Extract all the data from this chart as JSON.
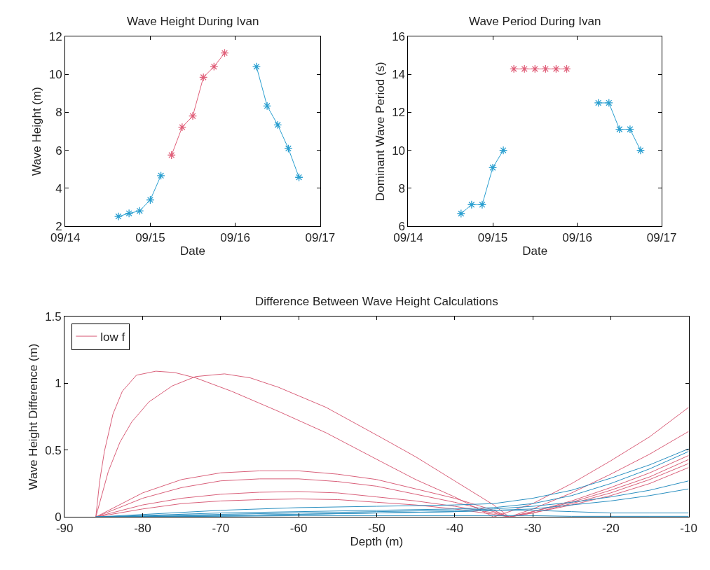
{
  "chart_data": [
    {
      "type": "line",
      "title": "Wave Height During Ivan",
      "xlabel": "Date",
      "ylabel": "Wave Height (m)",
      "marker": "cross",
      "x": [
        "--09-14T15:00",
        "--09-14T18:00",
        "--09-14T21:00",
        "--09-15T00:00",
        "--09-15T03:00",
        "--09-15T06:00",
        "--09-15T09:00",
        "--09-15T12:00",
        "--09-15T15:00",
        "--09-15T18:00",
        "--09-15T21:00",
        "--09-16T06:00",
        "--09-16T09:00",
        "--09-16T12:00",
        "--09-16T15:00",
        "--09-16T18:00"
      ],
      "xlim": [
        "--09-14",
        "--09-17"
      ],
      "xticks": [
        {
          "value": "--09-14",
          "label": "09/14"
        },
        {
          "value": "--09-15",
          "label": "09/15"
        },
        {
          "value": "--09-16",
          "label": "09/16"
        },
        {
          "value": "--09-17",
          "label": "09/17"
        }
      ],
      "ylim": [
        2,
        12
      ],
      "yticks": [
        2,
        4,
        6,
        8,
        10,
        12
      ],
      "series": [
        {
          "color": "#2a9fd0",
          "values": [
            2.52,
            2.68,
            2.81,
            3.39,
            4.67,
            null,
            null,
            null,
            null,
            null,
            null,
            10.41,
            8.34,
            7.34,
            6.1,
            4.58
          ]
        },
        {
          "color": "#e0607a",
          "values": [
            null,
            null,
            null,
            null,
            null,
            5.75,
            7.22,
            7.81,
            9.85,
            10.41,
            11.13,
            null,
            null,
            null,
            null,
            null
          ]
        }
      ]
    },
    {
      "type": "line",
      "title": "Wave Period During Ivan",
      "xlabel": "Date",
      "ylabel": "Dominant Wave Period (s)",
      "marker": "cross",
      "x": [
        "--09-14T15:00",
        "--09-14T18:00",
        "--09-14T21:00",
        "--09-15T00:00",
        "--09-15T03:00",
        "--09-15T06:00",
        "--09-15T09:00",
        "--09-15T12:00",
        "--09-15T15:00",
        "--09-15T18:00",
        "--09-15T21:00",
        "--09-16T06:00",
        "--09-16T09:00",
        "--09-16T12:00",
        "--09-16T15:00",
        "--09-16T18:00"
      ],
      "xlim": [
        "--09-14",
        "--09-17"
      ],
      "xticks": [
        {
          "value": "--09-14",
          "label": "09/14"
        },
        {
          "value": "--09-15",
          "label": "09/15"
        },
        {
          "value": "--09-16",
          "label": "09/16"
        },
        {
          "value": "--09-17",
          "label": "09/17"
        }
      ],
      "ylim": [
        6,
        16
      ],
      "yticks": [
        6,
        8,
        10,
        12,
        14,
        16
      ],
      "series": [
        {
          "color": "#2a9fd0",
          "values": [
            6.67,
            7.14,
            7.14,
            9.09,
            10.0,
            null,
            null,
            null,
            null,
            null,
            null,
            12.5,
            12.5,
            11.11,
            11.11,
            10.0
          ]
        },
        {
          "color": "#e0607a",
          "values": [
            null,
            null,
            null,
            null,
            null,
            14.29,
            14.29,
            14.29,
            14.29,
            14.29,
            14.29,
            null,
            null,
            null,
            null,
            null
          ]
        }
      ]
    },
    {
      "type": "line",
      "title": "Difference Between Wave Height Calculations",
      "xlabel": "Depth (m)",
      "ylabel": "Wave Height Difference (m)",
      "legend": "top left",
      "xlim": [
        -90,
        -10
      ],
      "xticks": [
        -90,
        -80,
        -70,
        -60,
        -50,
        -40,
        -30,
        -20,
        -10
      ],
      "ylim": [
        0,
        1.5
      ],
      "yticks": [
        0,
        0.5,
        1,
        1.5
      ],
      "series": [
        {
          "name": "low f",
          "color": "#d9607a",
          "x": [
            -86,
            -85.5,
            -84.9,
            -83.8,
            -82.6,
            -80.8,
            -78.3,
            -75.9,
            -73.2,
            -68.6,
            -62.6,
            -56.5,
            -49.3,
            -45,
            -40,
            -35,
            -30,
            -25,
            -20,
            -15,
            -10
          ],
          "values": [
            0,
            0.27,
            0.49,
            0.77,
            0.94,
            1.06,
            1.09,
            1.08,
            1.04,
            0.94,
            0.79,
            0.63,
            0.41,
            0.28,
            0.15,
            0,
            0.1,
            0.25,
            0.42,
            0.6,
            0.82
          ]
        },
        {
          "color": "#d9607a",
          "x": [
            -86,
            -84.4,
            -82.9,
            -81.4,
            -79.2,
            -76.2,
            -73.2,
            -69.5,
            -66.2,
            -62.6,
            -56.5,
            -49.3,
            -45,
            -40,
            -35,
            -33,
            -30,
            -25,
            -20,
            -15,
            -10
          ],
          "values": [
            0,
            0.34,
            0.56,
            0.71,
            0.86,
            0.98,
            1.05,
            1.07,
            1.04,
            0.97,
            0.82,
            0.59,
            0.45,
            0.27,
            0.09,
            0,
            0.06,
            0.18,
            0.32,
            0.47,
            0.64
          ]
        },
        {
          "color": "#d9607a",
          "x": [
            -86,
            -80,
            -75,
            -70,
            -65,
            -60,
            -55,
            -50,
            -45,
            -40,
            -35,
            -33,
            -30,
            -25,
            -20,
            -15,
            -10
          ],
          "values": [
            0,
            0.18,
            0.28,
            0.33,
            0.345,
            0.345,
            0.32,
            0.28,
            0.21,
            0.14,
            0.05,
            0,
            0.04,
            0.12,
            0.22,
            0.33,
            0.46
          ]
        },
        {
          "color": "#d9607a",
          "x": [
            -86,
            -80,
            -75,
            -70,
            -65,
            -60,
            -55,
            -50,
            -45,
            -40,
            -35,
            -33,
            -30,
            -25,
            -20,
            -15,
            -10
          ],
          "values": [
            0,
            0.14,
            0.22,
            0.27,
            0.285,
            0.285,
            0.265,
            0.23,
            0.17,
            0.11,
            0.04,
            0,
            0.04,
            0.11,
            0.2,
            0.3,
            0.43
          ]
        },
        {
          "color": "#d9607a",
          "x": [
            -86,
            -80,
            -75,
            -70,
            -65,
            -60,
            -55,
            -50,
            -45,
            -40,
            -35,
            -33,
            -30,
            -25,
            -20,
            -15,
            -10
          ],
          "values": [
            0,
            0.09,
            0.14,
            0.17,
            0.185,
            0.19,
            0.18,
            0.15,
            0.12,
            0.08,
            0.03,
            0,
            0.03,
            0.1,
            0.18,
            0.28,
            0.4
          ]
        },
        {
          "color": "#d9607a",
          "x": [
            -86,
            -80,
            -75,
            -70,
            -65,
            -60,
            -55,
            -50,
            -45,
            -40,
            -35,
            -33,
            -30,
            -25,
            -20,
            -15,
            -10
          ],
          "values": [
            0,
            0.06,
            0.1,
            0.12,
            0.13,
            0.135,
            0.13,
            0.11,
            0.09,
            0.06,
            0.02,
            0,
            0.03,
            0.09,
            0.16,
            0.25,
            0.37
          ]
        },
        {
          "color": "#2a8fc0",
          "x": [
            -86,
            -70,
            -60,
            -50,
            -40,
            -35,
            -30,
            -25,
            -20,
            -15,
            -10
          ],
          "values": [
            0,
            0.05,
            0.07,
            0.08,
            0.09,
            0.1,
            0.14,
            0.2,
            0.29,
            0.39,
            0.51
          ]
        },
        {
          "color": "#2a8fc0",
          "x": [
            -86,
            -70,
            -60,
            -50,
            -40,
            -35,
            -30,
            -25,
            -20,
            -15,
            -10
          ],
          "values": [
            0,
            0.03,
            0.04,
            0.05,
            0.06,
            0.07,
            0.1,
            0.16,
            0.25,
            0.36,
            0.49
          ]
        },
        {
          "color": "#2a8fc0",
          "x": [
            -86,
            -70,
            -60,
            -50,
            -40,
            -35,
            -30,
            -25,
            -20,
            -15,
            -10
          ],
          "values": [
            0,
            0.02,
            0.03,
            0.04,
            0.05,
            0.06,
            0.08,
            0.11,
            0.15,
            0.2,
            0.27
          ]
        },
        {
          "color": "#2a8fc0",
          "x": [
            -86,
            -70,
            -60,
            -50,
            -40,
            -35,
            -30,
            -25,
            -20,
            -15,
            -10
          ],
          "values": [
            0,
            0.01,
            0.02,
            0.03,
            0.04,
            0.05,
            0.06,
            0.09,
            0.12,
            0.16,
            0.21
          ]
        },
        {
          "color": "#2a8fc0",
          "x": [
            -86,
            -70,
            -60,
            -50,
            -40,
            -35,
            -30,
            -25,
            -20,
            -15,
            -10
          ],
          "values": [
            0,
            0.01,
            0.02,
            0.03,
            0.04,
            0.05,
            0.05,
            0.04,
            0.03,
            0.03,
            0.03
          ]
        },
        {
          "color": "#2a8fc0",
          "x": [
            -86,
            -70,
            -60,
            -50,
            -40,
            -35,
            -30,
            -25,
            -20,
            -15,
            -10
          ],
          "values": [
            0,
            0.005,
            0.01,
            0.01,
            0.01,
            0.01,
            0.01,
            0.005,
            0.005,
            0.005,
            0.005
          ]
        }
      ]
    }
  ]
}
